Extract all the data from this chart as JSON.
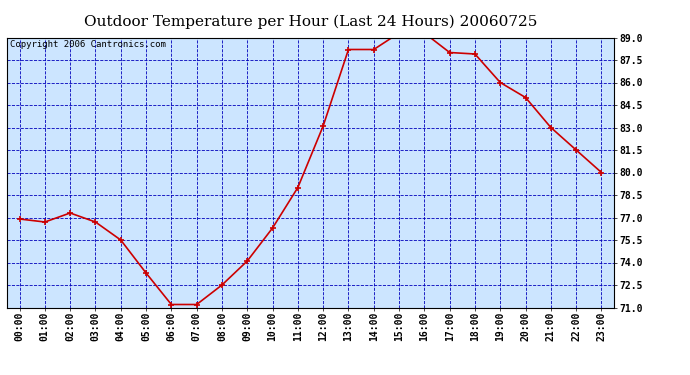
{
  "title": "Outdoor Temperature per Hour (Last 24 Hours) 20060725",
  "copyright": "Copyright 2006 Cantronics.com",
  "hours": [
    "00:00",
    "01:00",
    "02:00",
    "03:00",
    "04:00",
    "05:00",
    "06:00",
    "07:00",
    "08:00",
    "09:00",
    "10:00",
    "11:00",
    "12:00",
    "13:00",
    "14:00",
    "15:00",
    "16:00",
    "17:00",
    "18:00",
    "19:00",
    "20:00",
    "21:00",
    "22:00",
    "23:00"
  ],
  "temperatures": [
    76.9,
    76.7,
    77.3,
    76.7,
    75.5,
    73.3,
    71.2,
    71.2,
    72.5,
    74.1,
    76.3,
    79.0,
    83.1,
    88.2,
    88.2,
    89.3,
    89.3,
    88.0,
    87.9,
    86.0,
    85.0,
    83.0,
    81.5,
    80.0
  ],
  "x_values": [
    0,
    1,
    2,
    3,
    4,
    5,
    6,
    7,
    8,
    9,
    10,
    11,
    12,
    13,
    14,
    15,
    16,
    17,
    18,
    19,
    20,
    21,
    22,
    23
  ],
  "ylim": [
    71.0,
    89.0
  ],
  "yticks": [
    71.0,
    72.5,
    74.0,
    75.5,
    77.0,
    78.5,
    80.0,
    81.5,
    83.0,
    84.5,
    86.0,
    87.5,
    89.0
  ],
  "line_color": "#cc0000",
  "marker_color": "#cc0000",
  "plot_bg_color": "#cce5ff",
  "grid_color": "#0000bb",
  "title_fontsize": 11,
  "copyright_fontsize": 6.5,
  "tick_fontsize": 7,
  "outer_bg": "#ffffff",
  "border_color": "#000000"
}
